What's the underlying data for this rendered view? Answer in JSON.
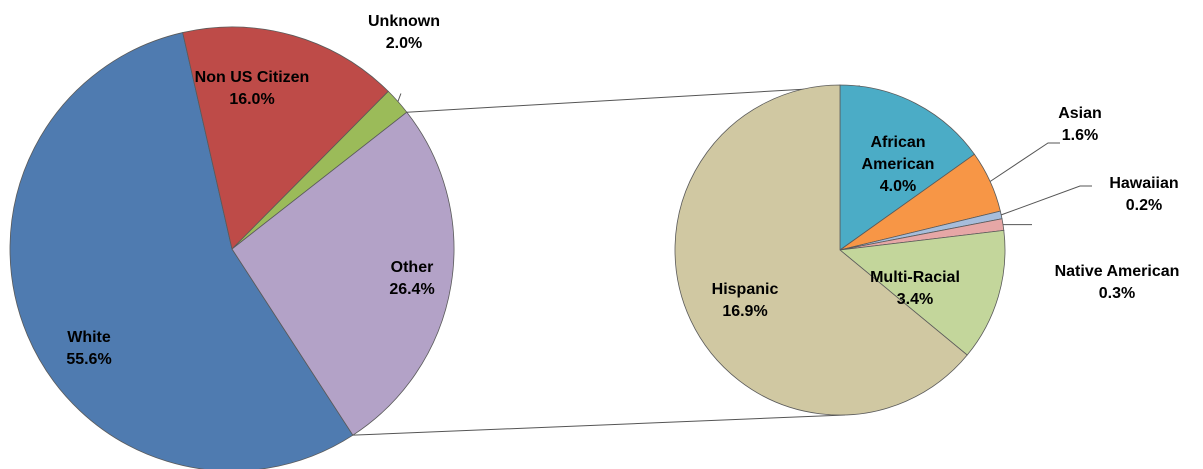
{
  "chart_data": {
    "type": "pie",
    "subtype": "pie-of-pie",
    "main_pie": {
      "slices": [
        {
          "label": "White",
          "value": 55.6,
          "display": "55.6%",
          "color": "#4F7BB0"
        },
        {
          "label": "Non US Citizen",
          "value": 16.0,
          "display": "16.0%",
          "color": "#BE4B48"
        },
        {
          "label": "Unknown",
          "value": 2.0,
          "display": "2.0%",
          "color": "#9BBB59"
        },
        {
          "label": "Other",
          "value": 26.4,
          "display": "26.4%",
          "color": "#B3A2C7"
        }
      ]
    },
    "breakout_pie": {
      "source_slice": "Other",
      "slices": [
        {
          "label": "African American",
          "label_lines": [
            "African",
            "American"
          ],
          "value": 4.0,
          "display": "4.0%",
          "color": "#4BACC6"
        },
        {
          "label": "Asian",
          "value": 1.6,
          "display": "1.6%",
          "color": "#F79646"
        },
        {
          "label": "Hawaiian",
          "value": 0.2,
          "display": "0.2%",
          "color": "#A6BDDB"
        },
        {
          "label": "Native American",
          "value": 0.3,
          "display": "0.3%",
          "color": "#E6A7A6"
        },
        {
          "label": "Multi-Racial",
          "value": 3.4,
          "display": "3.4%",
          "color": "#C3D69B"
        },
        {
          "label": "Hispanic",
          "value": 16.9,
          "display": "16.9%",
          "color": "#D0C8A2"
        }
      ]
    },
    "legend": "none"
  }
}
